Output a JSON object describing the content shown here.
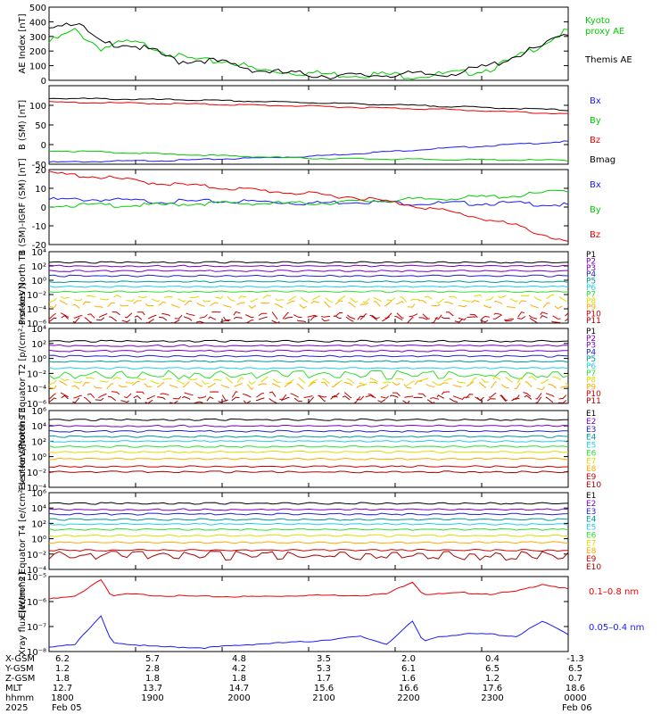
{
  "colors": {
    "black": "#000000",
    "blue": "#1a1aff",
    "green": "#00cc00",
    "red": "#ee0000",
    "purple": "#7a00c8",
    "navy": "#2222cc",
    "teal": "#009999",
    "cyan": "#22ccee",
    "lime": "#33dd33",
    "yellow": "#dddd00",
    "orange": "#ffaa00",
    "darkorange": "#ff7700",
    "darkred": "#cc0000",
    "maroon": "#aa0000"
  },
  "chart_data": [
    {
      "type": "line",
      "ylabel": "AE Index [nT]",
      "ylim": [
        0,
        500
      ],
      "ytick_labels": [
        "0",
        "100",
        "200",
        "300",
        "400",
        "500"
      ],
      "legend_position": "right",
      "x": [
        0,
        0.05,
        0.1,
        0.15,
        0.2,
        0.25,
        0.3,
        0.35,
        0.4,
        0.45,
        0.5,
        0.55,
        0.6,
        0.65,
        0.7,
        0.75,
        0.8,
        0.85,
        0.9,
        0.95,
        1.0
      ],
      "series": [
        {
          "name": "Kyoto proxy AE",
          "color": "green",
          "values": [
            260,
            340,
            220,
            260,
            230,
            160,
            130,
            130,
            70,
            60,
            50,
            40,
            40,
            40,
            30,
            40,
            50,
            80,
            150,
            250,
            340
          ]
        },
        {
          "name": "Themis AE",
          "color": "black",
          "values": [
            380,
            400,
            250,
            250,
            200,
            130,
            140,
            110,
            70,
            50,
            40,
            30,
            30,
            40,
            40,
            40,
            60,
            100,
            170,
            230,
            330
          ]
        }
      ]
    },
    {
      "type": "line",
      "ylabel": "B (SM) [nT]",
      "ylim": [
        -50,
        150
      ],
      "ytick_labels": [
        "-50",
        "0",
        "50",
        "100"
      ],
      "legend_position": "right",
      "x": [
        0,
        0.25,
        0.5,
        0.75,
        1.0
      ],
      "series": [
        {
          "name": "Bx",
          "color": "blue",
          "values": [
            -45,
            -40,
            -30,
            -10,
            8
          ]
        },
        {
          "name": "By",
          "color": "green",
          "values": [
            -15,
            -25,
            -35,
            -38,
            -40
          ]
        },
        {
          "name": "Bz",
          "color": "red",
          "values": [
            108,
            104,
            98,
            90,
            78
          ]
        },
        {
          "name": "Bmag",
          "color": "black",
          "values": [
            118,
            114,
            107,
            98,
            88
          ]
        }
      ]
    },
    {
      "type": "line",
      "ylabel": "B (SM)-IGRF (SM) [nT]",
      "ylim": [
        -20,
        20
      ],
      "ytick_labels": [
        "-20",
        "-10",
        "0",
        "10",
        "20"
      ],
      "legend_position": "right",
      "x": [
        0,
        0.1,
        0.2,
        0.3,
        0.4,
        0.5,
        0.6,
        0.7,
        0.8,
        0.9,
        1.0
      ],
      "series": [
        {
          "name": "Bx",
          "color": "blue",
          "values": [
            4,
            4,
            3,
            3,
            3,
            2,
            3,
            2,
            2,
            2,
            1
          ]
        },
        {
          "name": "By",
          "color": "green",
          "values": [
            1,
            1,
            1,
            2,
            2,
            2,
            3,
            4,
            5,
            6,
            9
          ]
        },
        {
          "name": "Bz",
          "color": "red",
          "values": [
            18,
            16,
            13,
            11,
            9,
            7,
            5,
            1,
            -4,
            -10,
            -19
          ]
        }
      ]
    },
    {
      "type": "line",
      "ylabel": "Protons North T1",
      "scale": "log",
      "ylim": [
        -6,
        4
      ],
      "ytick_labels": [
        "10⁴",
        "10²",
        "10⁰",
        "10⁻²",
        "10⁻⁴",
        "10⁻⁶"
      ],
      "legend_position": "right",
      "series": [
        {
          "name": "P1",
          "color": "black",
          "level": 2.5
        },
        {
          "name": "P2",
          "color": "purple",
          "level": 2.0
        },
        {
          "name": "P3",
          "color": "purple",
          "level": 1.3
        },
        {
          "name": "P4",
          "color": "navy",
          "level": 0.6
        },
        {
          "name": "P5",
          "color": "teal",
          "level": -0.2
        },
        {
          "name": "P6",
          "color": "cyan",
          "level": -0.9
        },
        {
          "name": "P7",
          "color": "lime",
          "level": -1.6
        },
        {
          "name": "P8",
          "color": "yellow",
          "level": -2.6
        },
        {
          "name": "P9",
          "color": "orange",
          "level": -3.4
        },
        {
          "name": "P10",
          "color": "darkred",
          "level": -5.0
        },
        {
          "name": "P11",
          "color": "maroon",
          "level": -5.5
        }
      ]
    },
    {
      "type": "line",
      "ylabel": "Protons Equator T2 [p/(cm²-s-sr-keV)]",
      "scale": "log",
      "ylim": [
        -6,
        4
      ],
      "ytick_labels": [
        "10⁴",
        "10²",
        "10⁰",
        "10⁻²",
        "10⁻⁴",
        "10⁻⁶"
      ],
      "legend_position": "right",
      "series": [
        {
          "name": "P1",
          "color": "black",
          "level": 2.3
        },
        {
          "name": "P2",
          "color": "purple",
          "level": 1.7
        },
        {
          "name": "P3",
          "color": "purple",
          "level": 1.0
        },
        {
          "name": "P4",
          "color": "navy",
          "level": 0.3
        },
        {
          "name": "P5",
          "color": "teal",
          "level": -0.4
        },
        {
          "name": "P6",
          "color": "cyan",
          "level": -1.3
        },
        {
          "name": "P7",
          "color": "lime",
          "level": -2.2
        },
        {
          "name": "P8",
          "color": "yellow",
          "level": -3.0
        },
        {
          "name": "P9",
          "color": "orange",
          "level": -3.6
        },
        {
          "name": "P10",
          "color": "darkred",
          "level": -5.0
        },
        {
          "name": "P11",
          "color": "maroon",
          "level": -5.5
        }
      ]
    },
    {
      "type": "line",
      "ylabel": "Electrons North T3",
      "scale": "log",
      "ylim": [
        -4,
        6
      ],
      "ytick_labels": [
        "10⁶",
        "10⁴",
        "10²",
        "10⁰",
        "10⁻²",
        "10⁻⁴"
      ],
      "legend_position": "right",
      "series": [
        {
          "name": "E1",
          "color": "black",
          "level": 4.8
        },
        {
          "name": "E2",
          "color": "purple",
          "level": 4.0
        },
        {
          "name": "E3",
          "color": "navy",
          "level": 3.3
        },
        {
          "name": "E4",
          "color": "teal",
          "level": 2.6
        },
        {
          "name": "E5",
          "color": "cyan",
          "level": 2.0
        },
        {
          "name": "E6",
          "color": "lime",
          "level": 1.3
        },
        {
          "name": "E7",
          "color": "yellow",
          "level": 0.6
        },
        {
          "name": "E8",
          "color": "orange",
          "level": -0.3
        },
        {
          "name": "E9",
          "color": "darkred",
          "level": -1.3
        },
        {
          "name": "E10",
          "color": "maroon",
          "level": -2.0
        }
      ]
    },
    {
      "type": "line",
      "ylabel": "Electrons Equator T4 [e/(cm²-s-sr-keV)]",
      "scale": "log",
      "ylim": [
        -4,
        6
      ],
      "ytick_labels": [
        "10⁶",
        "10⁴",
        "10²",
        "10⁰",
        "10⁻²",
        "10⁻⁴"
      ],
      "legend_position": "right",
      "series": [
        {
          "name": "E1",
          "color": "black",
          "level": 4.6
        },
        {
          "name": "E2",
          "color": "purple",
          "level": 3.8
        },
        {
          "name": "E3",
          "color": "navy",
          "level": 3.2
        },
        {
          "name": "E4",
          "color": "teal",
          "level": 2.5
        },
        {
          "name": "E5",
          "color": "cyan",
          "level": 1.9
        },
        {
          "name": "E6",
          "color": "lime",
          "level": 1.2
        },
        {
          "name": "E7",
          "color": "yellow",
          "level": 0.4
        },
        {
          "name": "E8",
          "color": "orange",
          "level": -0.5
        },
        {
          "name": "E9",
          "color": "darkred",
          "level": -1.5
        },
        {
          "name": "E10",
          "color": "maroon",
          "level": -2.2
        }
      ]
    },
    {
      "type": "line",
      "ylabel": "Xray flux [W/m^2]",
      "scale": "log",
      "ylim": [
        -8,
        -5
      ],
      "ytick_labels": [
        "10⁻⁵",
        "10⁻⁶",
        "10⁻⁷",
        "10⁻⁸"
      ],
      "legend_position": "right",
      "x": [
        0,
        0.05,
        0.1,
        0.12,
        0.15,
        0.2,
        0.3,
        0.4,
        0.5,
        0.6,
        0.65,
        0.7,
        0.72,
        0.75,
        0.8,
        0.85,
        0.9,
        0.95,
        1.0
      ],
      "series": [
        {
          "name": "0.1–0.8 nm",
          "color": "red",
          "values": [
            -5.9,
            -5.8,
            -5.1,
            -5.8,
            -5.7,
            -5.75,
            -5.8,
            -5.8,
            -5.75,
            -5.75,
            -5.7,
            -5.2,
            -5.7,
            -5.7,
            -5.65,
            -5.7,
            -5.6,
            -5.3,
            -5.5
          ]
        },
        {
          "name": "0.05–0.4 nm",
          "color": "blue",
          "values": [
            -7.8,
            -7.7,
            -6.6,
            -7.6,
            -7.7,
            -7.8,
            -7.85,
            -7.7,
            -7.6,
            -7.4,
            -7.7,
            -6.8,
            -7.6,
            -7.4,
            -7.3,
            -7.3,
            -7.4,
            -6.8,
            -7.3
          ]
        }
      ]
    }
  ],
  "ephemeris": {
    "rows": [
      {
        "label": "X-GSM",
        "values": [
          "6.2",
          "5.7",
          "4.8",
          "3.5",
          "2.0",
          "0.4",
          "-1.3"
        ]
      },
      {
        "label": "Y-GSM",
        "values": [
          "1.2",
          "2.8",
          "4.2",
          "5.3",
          "6.1",
          "6.5",
          "6.5"
        ]
      },
      {
        "label": "Z-GSM",
        "values": [
          "1.8",
          "1.8",
          "1.8",
          "1.7",
          "1.6",
          "1.2",
          "0.7"
        ]
      },
      {
        "label": "MLT",
        "values": [
          "12.7",
          "13.7",
          "14.7",
          "15.6",
          "16.6",
          "17.6",
          "18.6"
        ]
      },
      {
        "label": "hhmm",
        "values": [
          "1800",
          "1900",
          "2000",
          "2100",
          "2200",
          "2300",
          "0000"
        ]
      }
    ],
    "year_label": "2025",
    "start_date": "Feb 05",
    "end_date": "Feb 06"
  }
}
